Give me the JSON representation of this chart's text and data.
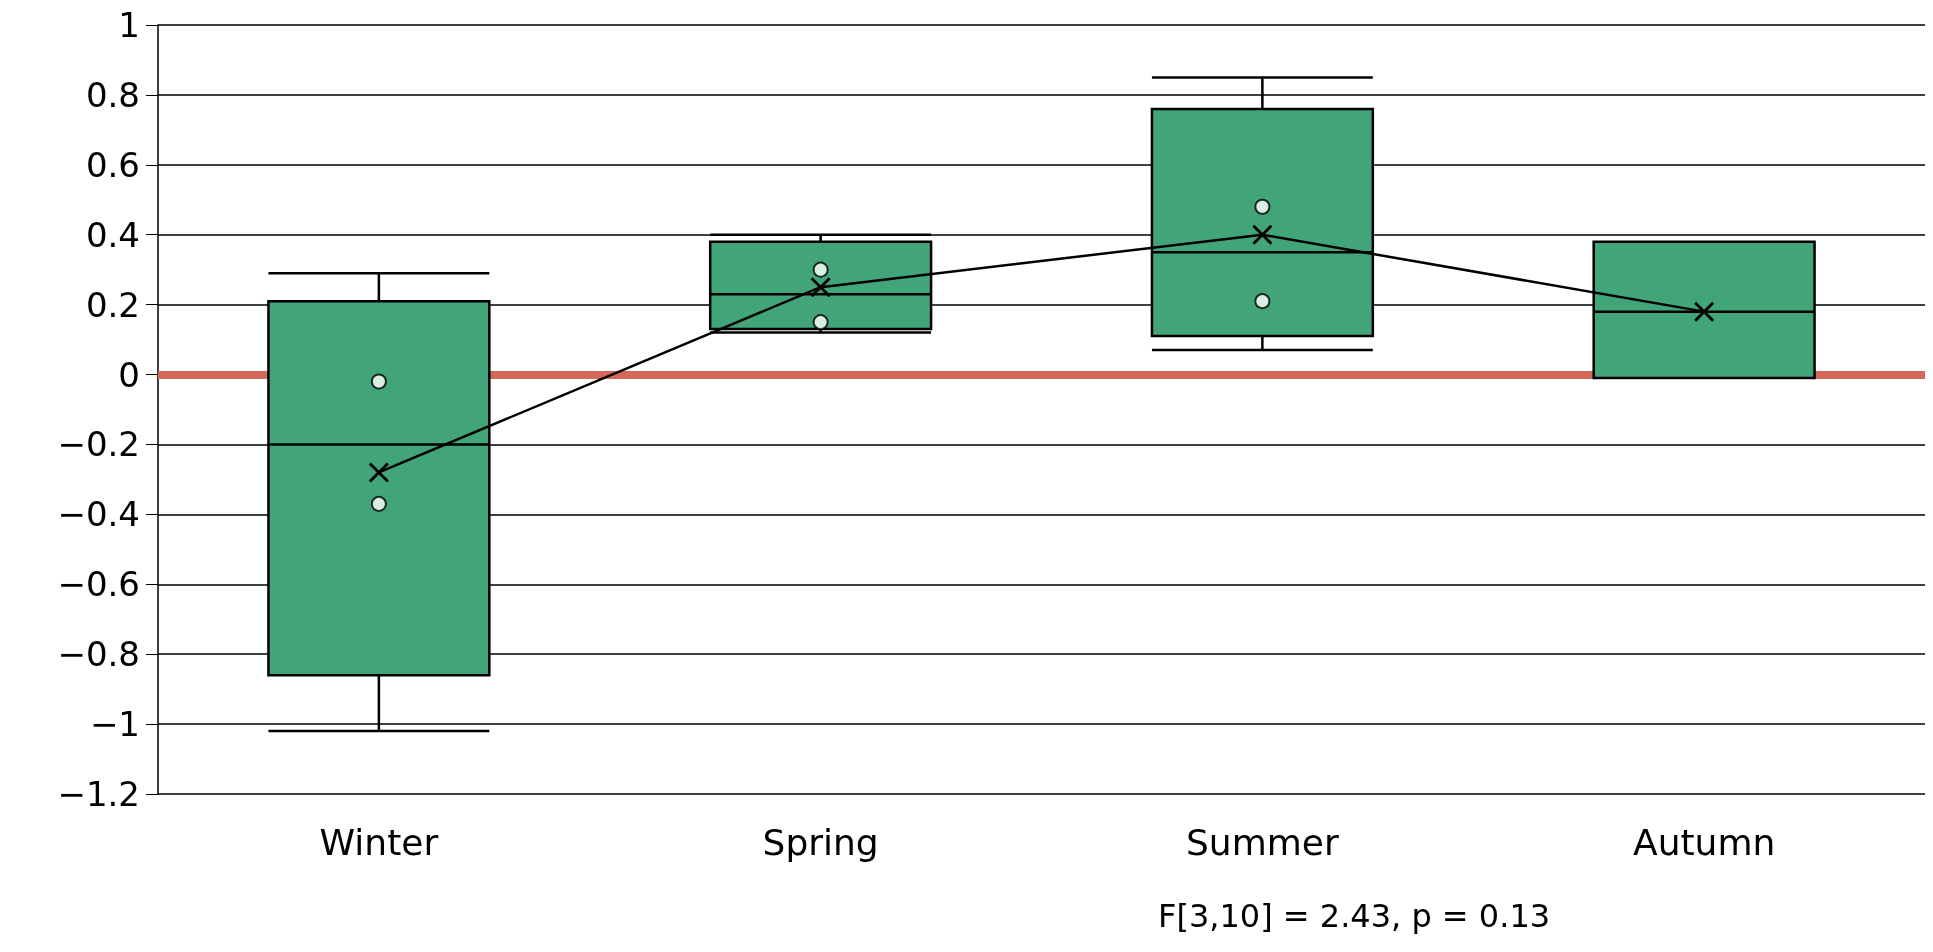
{
  "chart_data": {
    "type": "box",
    "categories": [
      "Winter",
      "Spring",
      "Summer",
      "Autumn"
    ],
    "series": [
      {
        "type": "box",
        "color": "#42a57a",
        "boxes": [
          {
            "low": -1.02,
            "q1": -0.86,
            "median": -0.2,
            "q3": 0.21,
            "high": 0.29
          },
          {
            "low": 0.12,
            "q1": 0.13,
            "median": 0.23,
            "q3": 0.38,
            "high": 0.4
          },
          {
            "low": 0.07,
            "q1": 0.11,
            "median": 0.35,
            "q3": 0.76,
            "high": 0.85
          },
          {
            "low": -0.01,
            "q1": -0.01,
            "median": 0.18,
            "q3": 0.38,
            "high": 0.38
          }
        ]
      },
      {
        "type": "scatter",
        "color": "#000000",
        "marker": "circle",
        "x": [
          "Winter",
          "Winter",
          "Spring",
          "Spring",
          "Summer",
          "Summer"
        ],
        "values": [
          -0.02,
          -0.37,
          0.3,
          0.15,
          0.48,
          0.21
        ]
      },
      {
        "type": "line",
        "color": "#000000",
        "marker": "cross",
        "values": [
          -0.28,
          0.25,
          0.4,
          0.18
        ]
      }
    ],
    "ylim": [
      -1.2,
      1
    ],
    "yticks": [
      -1.2,
      -1,
      -0.8,
      -0.6,
      -0.4,
      -0.2,
      0,
      0.2,
      0.4,
      0.6,
      0.8,
      1
    ],
    "grid": "y",
    "ref_lines": [
      {
        "axis": "y",
        "value": 0,
        "color": "#d4695a"
      }
    ],
    "annotations": [
      "F[3,10] = 2.43, p = 0.13"
    ]
  }
}
